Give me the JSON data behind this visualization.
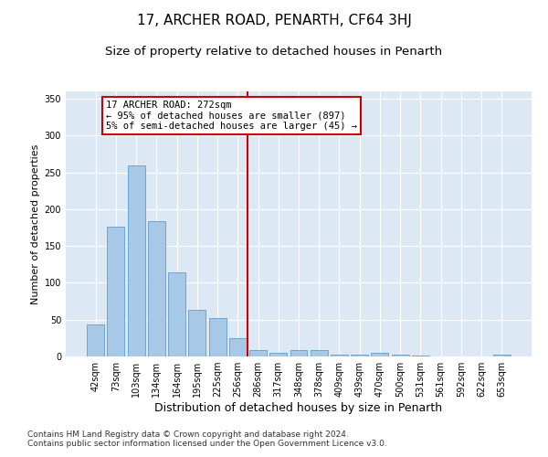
{
  "title1": "17, ARCHER ROAD, PENARTH, CF64 3HJ",
  "title2": "Size of property relative to detached houses in Penarth",
  "xlabel": "Distribution of detached houses by size in Penarth",
  "ylabel": "Number of detached properties",
  "categories": [
    "42sqm",
    "73sqm",
    "103sqm",
    "134sqm",
    "164sqm",
    "195sqm",
    "225sqm",
    "256sqm",
    "286sqm",
    "317sqm",
    "348sqm",
    "378sqm",
    "409sqm",
    "439sqm",
    "470sqm",
    "500sqm",
    "531sqm",
    "561sqm",
    "592sqm",
    "622sqm",
    "653sqm"
  ],
  "values": [
    43,
    176,
    260,
    184,
    114,
    63,
    52,
    25,
    9,
    5,
    9,
    9,
    3,
    3,
    5,
    2,
    1,
    0,
    0,
    0,
    2
  ],
  "bar_color": "#a8c8e8",
  "bar_edge_color": "#5a9fd4",
  "vline_x": 7.5,
  "vline_color": "#cc0000",
  "annotation_text": "17 ARCHER ROAD: 272sqm\n← 95% of detached houses are smaller (897)\n5% of semi-detached houses are larger (45) →",
  "annotation_box_color": "#ffffff",
  "annotation_box_edge": "#cc0000",
  "ylim": [
    0,
    360
  ],
  "yticks": [
    0,
    50,
    100,
    150,
    200,
    250,
    300,
    350
  ],
  "footer": "Contains HM Land Registry data © Crown copyright and database right 2024.\nContains public sector information licensed under the Open Government Licence v3.0.",
  "background_color": "#dde8f5",
  "title1_fontsize": 11,
  "title2_fontsize": 9.5,
  "xlabel_fontsize": 9,
  "ylabel_fontsize": 8,
  "footer_fontsize": 6.5,
  "annot_fontsize": 7.5,
  "tick_fontsize": 7
}
